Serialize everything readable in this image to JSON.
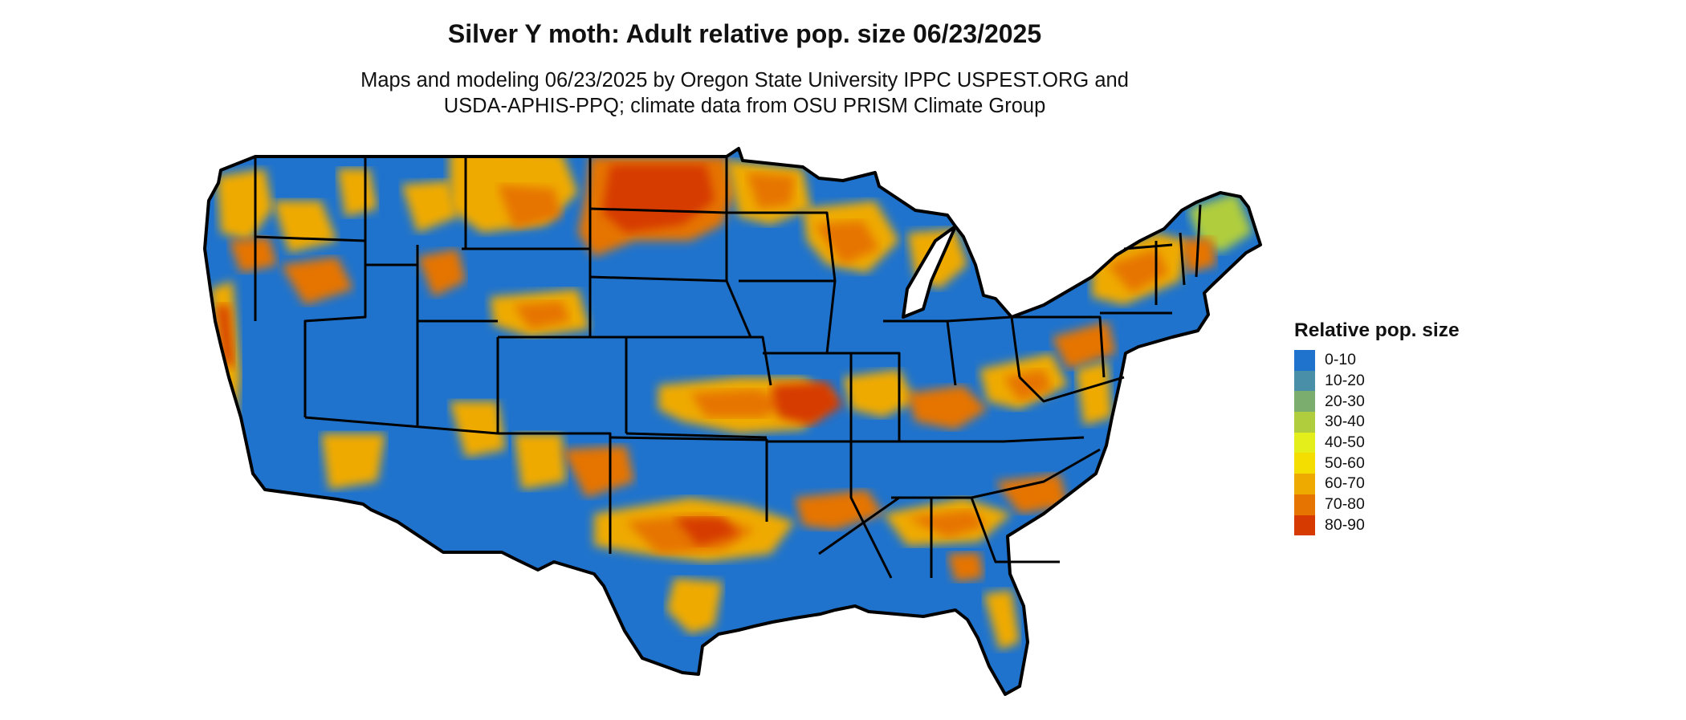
{
  "map": {
    "title": "Silver Y moth: Adult relative pop. size 06/23/2025",
    "subtitle_line1": "Maps and modeling 06/23/2025 by Oregon State University IPPC USPEST.ORG and",
    "subtitle_line2": "USDA-APHIS-PPQ; climate data from OSU PRISM Climate Group",
    "region": "Contiguous United States",
    "boundaries": "state outlines"
  },
  "legend": {
    "title": "Relative pop. size",
    "items": [
      {
        "label": "0-10",
        "color": "#1f73cc"
      },
      {
        "label": "10-20",
        "color": "#4a8fa8"
      },
      {
        "label": "20-30",
        "color": "#7aad6e"
      },
      {
        "label": "30-40",
        "color": "#b0cd3d"
      },
      {
        "label": "40-50",
        "color": "#e3ee1a"
      },
      {
        "label": "50-60",
        "color": "#f4dd00"
      },
      {
        "label": "60-70",
        "color": "#efaa00"
      },
      {
        "label": "70-80",
        "color": "#e67400"
      },
      {
        "label": "80-90",
        "color": "#d63a00"
      }
    ]
  }
}
